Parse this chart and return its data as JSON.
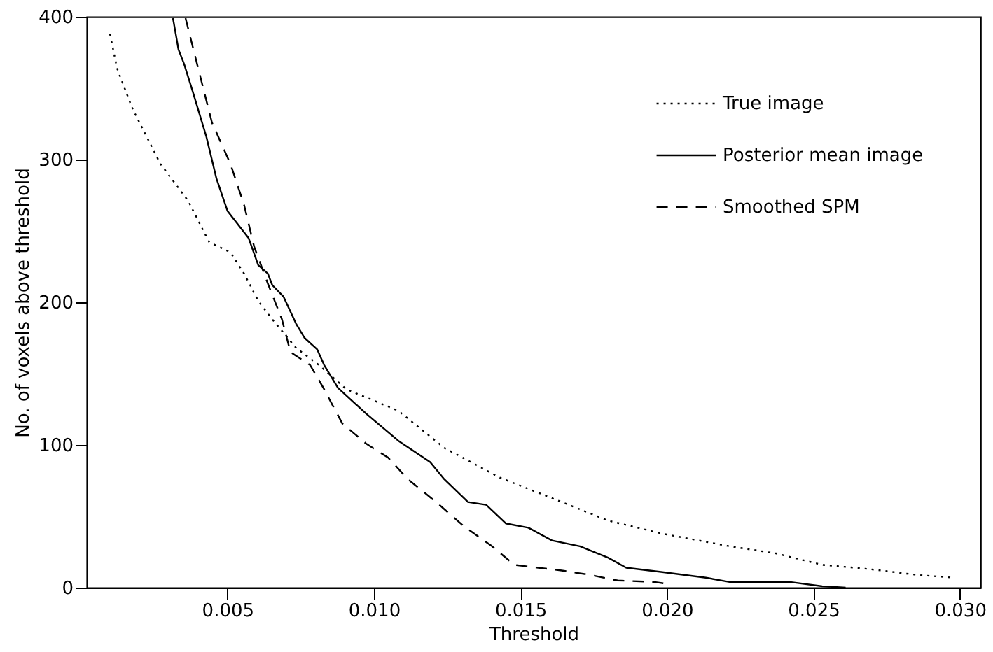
{
  "chart_data": {
    "type": "line",
    "xlabel": "Threshold",
    "ylabel": "No. of voxels above threshold",
    "xlim": [
      0.0002,
      0.0307
    ],
    "ylim": [
      0,
      400
    ],
    "xticks": [
      {
        "value": 0.005,
        "label": "0.005"
      },
      {
        "value": 0.01,
        "label": "0.010"
      },
      {
        "value": 0.015,
        "label": "0.015"
      },
      {
        "value": 0.02,
        "label": "0.020"
      },
      {
        "value": 0.025,
        "label": "0.025"
      },
      {
        "value": 0.03,
        "label": "0.030"
      }
    ],
    "yticks": [
      0,
      100,
      200,
      300,
      400
    ],
    "grid": false,
    "legend": "top right",
    "series": [
      {
        "name": "True image",
        "color": "#000000",
        "line_style": "dotted",
        "x": [
          0.00099,
          0.00123,
          0.00175,
          0.00271,
          0.00366,
          0.00438,
          0.0051,
          0.00557,
          0.00605,
          0.00653,
          0.00734,
          0.00812,
          0.00906,
          0.01083,
          0.0124,
          0.01431,
          0.01641,
          0.01799,
          0.0198,
          0.02214,
          0.02372,
          0.0253,
          0.02692,
          0.0285,
          0.02979
        ],
        "values": [
          388,
          364,
          336,
          297,
          271,
          242,
          235,
          220,
          201,
          188,
          168,
          156,
          139,
          124,
          98,
          77,
          60,
          47,
          38,
          29,
          24,
          16,
          13,
          9,
          7
        ]
      },
      {
        "name": "Posterior mean image",
        "color": "#000000",
        "line_style": "solid",
        "x": [
          0.00314,
          0.00333,
          0.00352,
          0.00381,
          0.00428,
          0.00462,
          0.005,
          0.00572,
          0.00605,
          0.00638,
          0.00653,
          0.00691,
          0.00734,
          0.00763,
          0.00806,
          0.0083,
          0.00877,
          0.00973,
          0.01083,
          0.01192,
          0.0124,
          0.01321,
          0.01383,
          0.0145,
          0.01527,
          0.01608,
          0.01703,
          0.01799,
          0.01861,
          0.0198,
          0.02133,
          0.02214,
          0.0242,
          0.0253,
          0.0261
        ],
        "values": [
          399,
          377,
          367,
          348,
          316,
          287,
          264,
          245,
          226,
          220,
          212,
          204,
          185,
          175,
          167,
          156,
          140,
          122,
          103,
          88,
          76,
          60,
          58,
          45,
          42,
          33,
          29,
          21,
          14,
          11,
          7,
          4,
          4,
          1,
          0
        ]
      },
      {
        "name": "Smoothed SPM",
        "color": "#000000",
        "line_style": "dashed",
        "x": [
          0.00357,
          0.004,
          0.00447,
          0.0051,
          0.00557,
          0.00591,
          0.00638,
          0.00686,
          0.00715,
          0.00782,
          0.0083,
          0.00892,
          0.00973,
          0.01049,
          0.01116,
          0.01212,
          0.01307,
          0.01403,
          0.01479,
          0.0156,
          0.01641,
          0.01737,
          0.01832,
          0.01957,
          0.0199
        ],
        "values": [
          399,
          364,
          326,
          297,
          268,
          239,
          213,
          188,
          165,
          156,
          139,
          115,
          101,
          91,
          76,
          60,
          43,
          29,
          16,
          14,
          12,
          9,
          5,
          4,
          3
        ]
      }
    ]
  }
}
